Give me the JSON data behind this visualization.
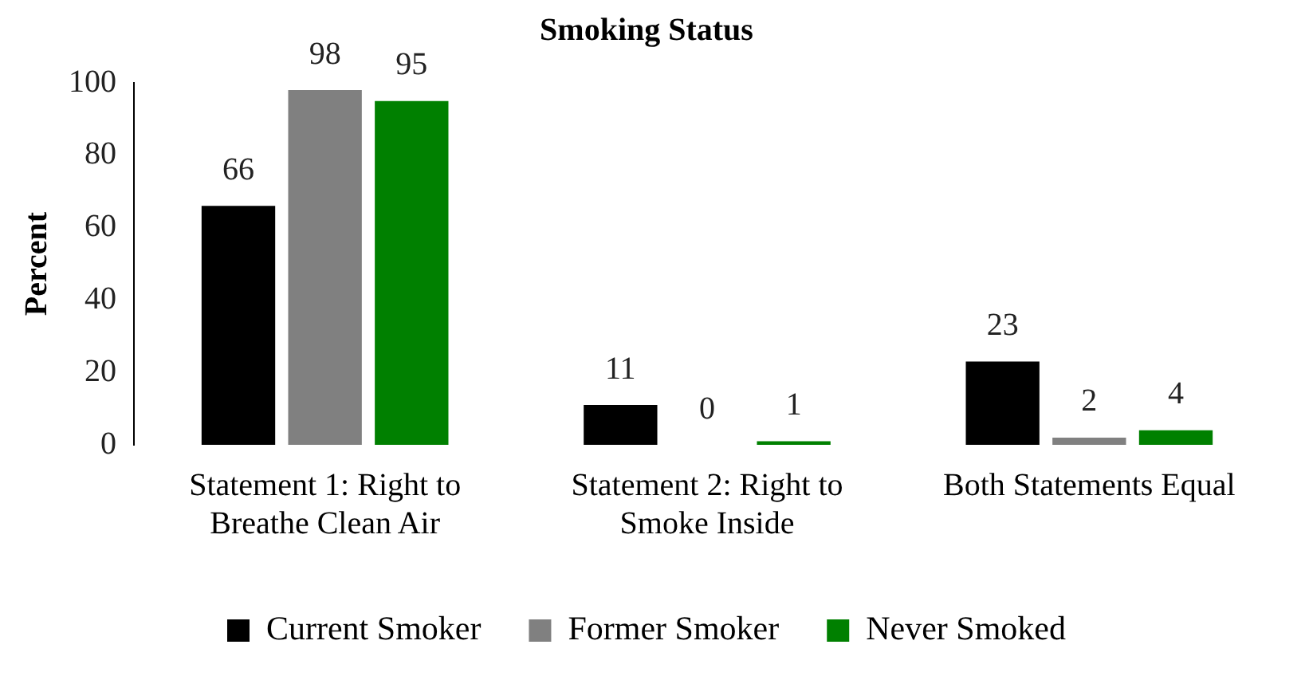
{
  "chart_data": {
    "type": "bar",
    "title": "Smoking Status",
    "ylabel": "Percent",
    "categories": [
      "Statement 1: Right to Breathe Clean Air",
      "Statement 2: Right to Smoke Inside",
      "Both Statements Equal"
    ],
    "series": [
      {
        "name": "Current Smoker",
        "color": "#000000",
        "values": [
          66,
          11,
          23
        ]
      },
      {
        "name": "Former Smoker",
        "color": "#808080",
        "values": [
          98,
          0,
          2
        ]
      },
      {
        "name": "Never Smoked",
        "color": "#008000",
        "values": [
          95,
          1,
          4
        ]
      }
    ],
    "ylim": [
      0,
      100
    ],
    "yticks": [
      0,
      20,
      40,
      60,
      80,
      100
    ],
    "grid": false,
    "legend": "bottom",
    "data_labels": true
  }
}
